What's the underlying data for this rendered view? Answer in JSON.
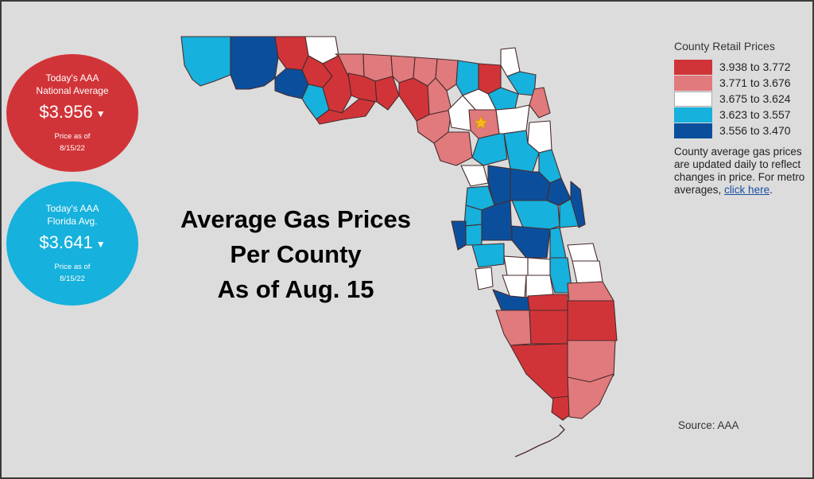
{
  "national": {
    "label_line1": "Today's AAA",
    "label_line2": "National Average",
    "price": "$3.956",
    "caret": "▼",
    "asof_line1": "Price as of",
    "asof_line2": "8/15/22",
    "color": "#d13438"
  },
  "florida": {
    "label_line1": "Today's AAA",
    "label_line2": "Florida Avg.",
    "price": "$3.641",
    "caret": "▼",
    "asof_line1": "Price as of",
    "asof_line2": "8/15/22",
    "color": "#16b1dc"
  },
  "headline": {
    "line1": "Average Gas Prices",
    "line2": "Per County",
    "line3": "As of Aug. 15"
  },
  "legend": {
    "title": "County Retail Prices",
    "items": [
      {
        "range": "3.938 to 3.772",
        "color": "#d13438"
      },
      {
        "range": "3.771 to 3.676",
        "color": "#e07a7d"
      },
      {
        "range": "3.675 to 3.624",
        "color": "#ffffff"
      },
      {
        "range": "3.623 to 3.557",
        "color": "#16b1dc"
      },
      {
        "range": "3.556 to 3.470",
        "color": "#0b4f9c"
      }
    ],
    "note_text": "County average gas prices are updated daily to reflect changes in price. For metro averages,",
    "link_text": "click here",
    "note_end": "."
  },
  "source": "Source: AAA",
  "map": {
    "capital_marker_icon": "star-icon",
    "border_color": "#4a2a2a"
  }
}
